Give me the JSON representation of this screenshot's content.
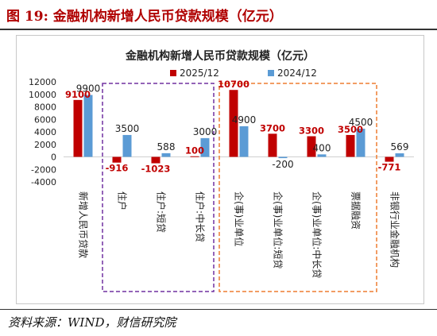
{
  "figure_title": "图 19:  金融机构新增人民币贷款规模（亿元）",
  "source": "资料来源：WIND，财信研究院",
  "colors": {
    "series_a": "#c00000",
    "series_b": "#5b9bd5",
    "title_red": "#b00000",
    "box_purple": "#7030a0",
    "box_orange": "#ed7d31"
  },
  "chart_data": {
    "type": "bar",
    "title": "金融机构新增人民币贷款规模（亿元）",
    "categories": [
      "新增人民币贷款",
      "住户",
      "住户:短贷",
      "住户:中长贷",
      "企(事)业单位",
      "企(事)业单位:短贷",
      "企(事)业单位:中长贷",
      "票据融资",
      "非银行业金融机构"
    ],
    "series": [
      {
        "name": "2025/12",
        "color": "#c00000",
        "values": [
          9100,
          -916,
          -1023,
          100,
          10700,
          3700,
          3300,
          3500,
          -771
        ],
        "labels": [
          "9100",
          "-916",
          "-1023",
          "100",
          "10700",
          "3700",
          "3300",
          "3500",
          "-771"
        ]
      },
      {
        "name": "2024/12",
        "color": "#5b9bd5",
        "values": [
          9900,
          3500,
          588,
          3000,
          4900,
          -200,
          400,
          4500,
          569
        ],
        "labels": [
          "9900",
          "3500",
          "588",
          "3000",
          "4900",
          "-200",
          "400",
          "4500",
          "569"
        ]
      }
    ],
    "yticks": [
      "12000",
      "10000",
      "8000",
      "6000",
      "4000",
      "2000",
      "0",
      "-2000",
      "-4000"
    ],
    "ylim": [
      -4000,
      12000
    ],
    "legend_position": "top",
    "grid": false
  }
}
